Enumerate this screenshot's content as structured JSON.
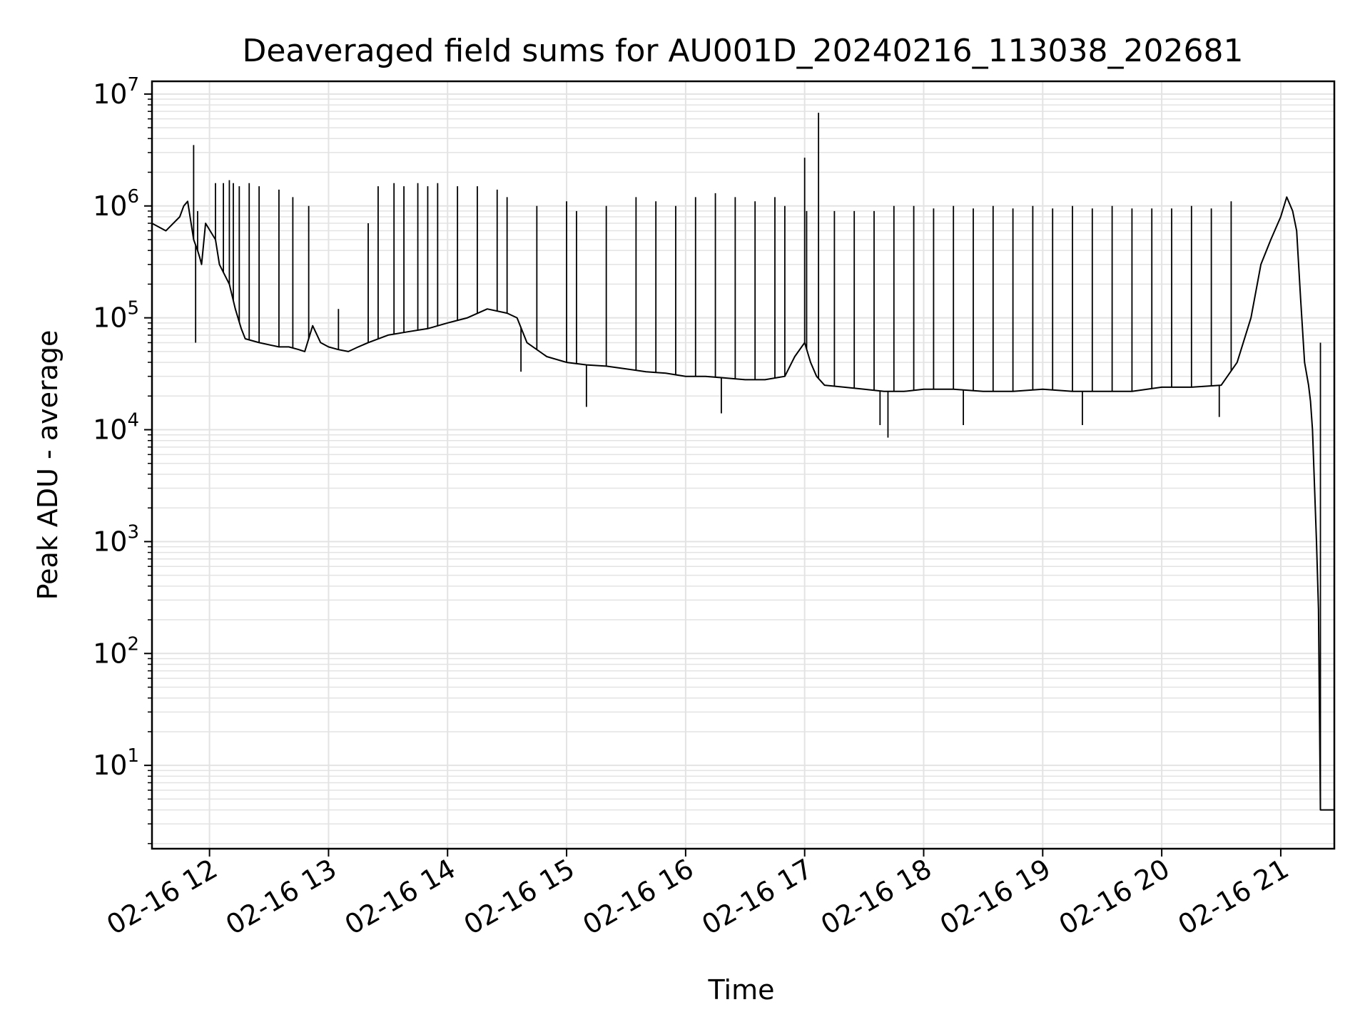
{
  "chart_data": {
    "type": "line",
    "title": "Deaveraged field sums for AU001D_20240216_113038_202681",
    "xlabel": "Time",
    "ylabel": "Peak ADU - average",
    "yscale": "log",
    "grid": true,
    "line_color": "#000000",
    "grid_color": "#e3e3e3",
    "x_ticks": [
      "02-16 12",
      "02-16 13",
      "02-16 14",
      "02-16 15",
      "02-16 16",
      "02-16 17",
      "02-16 18",
      "02-16 19",
      "02-16 20",
      "02-16 21"
    ],
    "x_range": [
      "2024-02-16 11:31",
      "2024-02-16 21:27"
    ],
    "y_ticks": [
      {
        "base": "10",
        "exp": "1",
        "value": 10
      },
      {
        "base": "10",
        "exp": "2",
        "value": 100
      },
      {
        "base": "10",
        "exp": "3",
        "value": 1000
      },
      {
        "base": "10",
        "exp": "4",
        "value": 10000
      },
      {
        "base": "10",
        "exp": "5",
        "value": 100000
      },
      {
        "base": "10",
        "exp": "6",
        "value": 1000000
      },
      {
        "base": "10",
        "exp": "7",
        "value": 10000000
      }
    ],
    "ylim": [
      1.8,
      13000000
    ],
    "series": [
      {
        "x": [
          "2024-02-16 11:31",
          "2024-02-16 11:38",
          "2024-02-16 11:45",
          "2024-02-16 11:47",
          "2024-02-16 11:49",
          "2024-02-16 11:52",
          "2024-02-16 11:54",
          "2024-02-16 11:55",
          "2024-02-16 11:56",
          "2024-02-16 11:58",
          "2024-02-16 12:03",
          "2024-02-16 12:05",
          "2024-02-16 12:10",
          "2024-02-16 12:13",
          "2024-02-16 12:16",
          "2024-02-16 12:18",
          "2024-02-16 12:25",
          "2024-02-16 12:35",
          "2024-02-16 12:40",
          "2024-02-16 12:45",
          "2024-02-16 12:48",
          "2024-02-16 12:52",
          "2024-02-16 12:56",
          "2024-02-16 13:00",
          "2024-02-16 13:05",
          "2024-02-16 13:10",
          "2024-02-16 13:15",
          "2024-02-16 13:20",
          "2024-02-16 13:30",
          "2024-02-16 13:40",
          "2024-02-16 13:50",
          "2024-02-16 14:00",
          "2024-02-16 14:10",
          "2024-02-16 14:20",
          "2024-02-16 14:30",
          "2024-02-16 14:35",
          "2024-02-16 14:40",
          "2024-02-16 14:50",
          "2024-02-16 15:00",
          "2024-02-16 15:10",
          "2024-02-16 15:20",
          "2024-02-16 15:30",
          "2024-02-16 15:40",
          "2024-02-16 15:50",
          "2024-02-16 16:00",
          "2024-02-16 16:10",
          "2024-02-16 16:20",
          "2024-02-16 16:30",
          "2024-02-16 16:40",
          "2024-02-16 16:50",
          "2024-02-16 16:55",
          "2024-02-16 17:00",
          "2024-02-16 17:03",
          "2024-02-16 17:06",
          "2024-02-16 17:10",
          "2024-02-16 17:20",
          "2024-02-16 17:30",
          "2024-02-16 17:40",
          "2024-02-16 17:50",
          "2024-02-16 18:00",
          "2024-02-16 18:15",
          "2024-02-16 18:30",
          "2024-02-16 18:45",
          "2024-02-16 19:00",
          "2024-02-16 19:15",
          "2024-02-16 19:30",
          "2024-02-16 19:45",
          "2024-02-16 20:00",
          "2024-02-16 20:15",
          "2024-02-16 20:30",
          "2024-02-16 20:38",
          "2024-02-16 20:45",
          "2024-02-16 20:50",
          "2024-02-16 20:55",
          "2024-02-16 21:00",
          "2024-02-16 21:03",
          "2024-02-16 21:06",
          "2024-02-16 21:08",
          "2024-02-16 21:10",
          "2024-02-16 21:12",
          "2024-02-16 21:14",
          "2024-02-16 21:15",
          "2024-02-16 21:16",
          "2024-02-16 21:18",
          "2024-02-16 21:19",
          "2024-02-16 21:20",
          "2024-02-16 21:21",
          "2024-02-16 21:27"
        ],
        "values": [
          700000,
          600000,
          800000,
          1000000,
          1100000,
          500000,
          400000,
          350000,
          300000,
          700000,
          500000,
          300000,
          200000,
          120000,
          80000,
          65000,
          60000,
          55000,
          55000,
          52000,
          50000,
          85000,
          60000,
          55000,
          52000,
          50000,
          55000,
          60000,
          70000,
          75000,
          80000,
          90000,
          100000,
          120000,
          110000,
          100000,
          60000,
          45000,
          40000,
          38000,
          37000,
          35000,
          33000,
          32000,
          30000,
          30000,
          29000,
          28000,
          28000,
          30000,
          45000,
          60000,
          40000,
          30000,
          25000,
          24000,
          23000,
          22000,
          22000,
          23000,
          23000,
          22000,
          22000,
          23000,
          22000,
          22000,
          22000,
          24000,
          24000,
          25000,
          40000,
          100000,
          300000,
          500000,
          800000,
          1200000,
          900000,
          600000,
          150000,
          40000,
          25000,
          18000,
          10000,
          1000,
          250,
          4,
          4,
          4
        ]
      }
    ],
    "spikes": {
      "x": [
        "2024-02-16 11:52",
        "2024-02-16 11:53",
        "2024-02-16 11:54",
        "2024-02-16 12:03",
        "2024-02-16 12:07",
        "2024-02-16 12:10",
        "2024-02-16 12:12",
        "2024-02-16 12:15",
        "2024-02-16 12:20",
        "2024-02-16 12:25",
        "2024-02-16 12:35",
        "2024-02-16 12:42",
        "2024-02-16 12:50",
        "2024-02-16 13:05",
        "2024-02-16 13:20",
        "2024-02-16 13:25",
        "2024-02-16 13:33",
        "2024-02-16 13:38",
        "2024-02-16 13:45",
        "2024-02-16 13:50",
        "2024-02-16 13:55",
        "2024-02-16 14:05",
        "2024-02-16 14:15",
        "2024-02-16 14:25",
        "2024-02-16 14:30",
        "2024-02-16 14:45",
        "2024-02-16 15:00",
        "2024-02-16 15:05",
        "2024-02-16 15:20",
        "2024-02-16 15:35",
        "2024-02-16 15:45",
        "2024-02-16 15:55",
        "2024-02-16 16:05",
        "2024-02-16 16:15",
        "2024-02-16 16:25",
        "2024-02-16 16:35",
        "2024-02-16 16:45",
        "2024-02-16 16:50",
        "2024-02-16 17:00",
        "2024-02-16 17:01",
        "2024-02-16 17:07",
        "2024-02-16 17:15",
        "2024-02-16 17:25",
        "2024-02-16 17:35",
        "2024-02-16 17:45",
        "2024-02-16 17:55",
        "2024-02-16 18:05",
        "2024-02-16 18:15",
        "2024-02-16 18:25",
        "2024-02-16 18:35",
        "2024-02-16 18:45",
        "2024-02-16 18:55",
        "2024-02-16 19:05",
        "2024-02-16 19:15",
        "2024-02-16 19:25",
        "2024-02-16 19:35",
        "2024-02-16 19:45",
        "2024-02-16 19:55",
        "2024-02-16 20:05",
        "2024-02-16 20:15",
        "2024-02-16 20:25",
        "2024-02-16 20:35"
      ],
      "values": [
        3500000,
        60000,
        900000,
        1600000,
        1600000,
        1700000,
        1600000,
        1500000,
        1600000,
        1500000,
        1400000,
        1200000,
        1000000,
        120000,
        700000,
        1500000,
        1600000,
        1500000,
        1600000,
        1500000,
        1600000,
        1500000,
        1500000,
        1400000,
        1200000,
        1000000,
        1100000,
        900000,
        1000000,
        1200000,
        1100000,
        1000000,
        1200000,
        1300000,
        1200000,
        1100000,
        1200000,
        1000000,
        2700000,
        900000,
        6800000,
        900000,
        900000,
        900000,
        1000000,
        1000000,
        950000,
        1000000,
        950000,
        1000000,
        950000,
        1000000,
        950000,
        1000000,
        950000,
        1000000,
        950000,
        950000,
        950000,
        1000000,
        950000,
        1100000
      ]
    },
    "dips": {
      "x": [
        "2024-02-16 14:37",
        "2024-02-16 15:10",
        "2024-02-16 16:18",
        "2024-02-16 17:38",
        "2024-02-16 17:42",
        "2024-02-16 18:20",
        "2024-02-16 19:20",
        "2024-02-16 20:29",
        "2024-02-16 21:20"
      ],
      "values": [
        33000,
        16000,
        14000,
        11000,
        8500,
        11000,
        11000,
        13000,
        60000
      ]
    }
  }
}
